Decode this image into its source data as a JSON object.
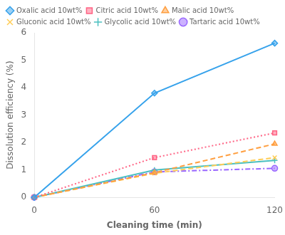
{
  "chart_data": {
    "type": "line",
    "x": [
      0,
      60,
      120
    ],
    "series": [
      {
        "name": "Oxalic acid 10wt%",
        "values": [
          0,
          3.8,
          5.62
        ],
        "marker": "diamond",
        "line_style": "solid"
      },
      {
        "name": "Citric acid 10wt%",
        "values": [
          0,
          1.45,
          2.35
        ],
        "marker": "square",
        "line_style": "dotted"
      },
      {
        "name": "Malic acid 10wt%",
        "values": [
          0,
          0.9,
          1.95
        ],
        "marker": "triangle",
        "line_style": "dashed"
      },
      {
        "name": "Gluconic acid 10wt%",
        "values": [
          0,
          0.88,
          1.45
        ],
        "marker": "x",
        "line_style": "dashed"
      },
      {
        "name": "Glycolic acid 10wt%",
        "values": [
          0,
          1.0,
          1.35
        ],
        "marker": "plus",
        "line_style": "solid"
      },
      {
        "name": "Tartaric acid 10wt%",
        "values": [
          0,
          0.93,
          1.06
        ],
        "marker": "circle",
        "line_style": "dashdot"
      }
    ],
    "x_label": "Cleaning time (min)",
    "y_label": "Dissolution efficiency (%)",
    "xlim": [
      0,
      120
    ],
    "ylim": [
      0,
      6
    ],
    "xticks": [
      0,
      60,
      120
    ],
    "yticks": [
      0,
      1,
      2,
      3,
      4,
      5,
      6
    ],
    "grid": false,
    "legend": "upper left"
  }
}
